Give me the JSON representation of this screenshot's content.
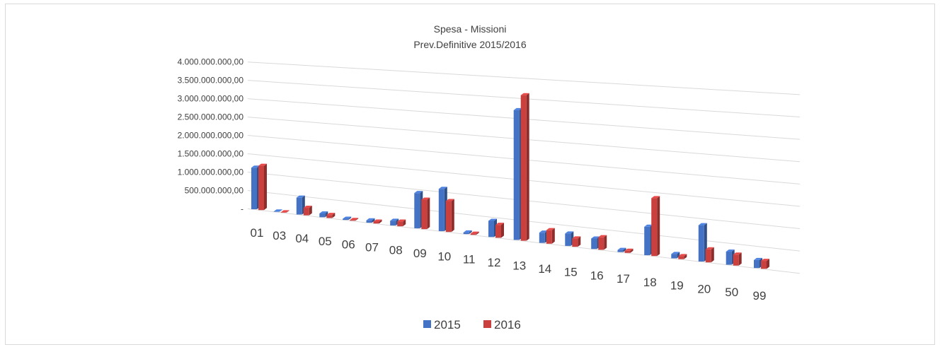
{
  "chart_data": {
    "type": "bar3d",
    "title": "Spesa - Missioni",
    "subtitle": "Prev.Definitive 2015/2016",
    "categories": [
      "01",
      "03",
      "04",
      "05",
      "06",
      "07",
      "08",
      "09",
      "10",
      "11",
      "12",
      "13",
      "14",
      "15",
      "16",
      "17",
      "18",
      "19",
      "20",
      "50",
      "99"
    ],
    "series": [
      {
        "name": "2015",
        "color": "#4472c4",
        "values": [
          1130000000,
          10000000,
          450000000,
          100000000,
          30000000,
          60000000,
          120000000,
          900000000,
          1070000000,
          40000000,
          400000000,
          3200000000,
          250000000,
          300000000,
          250000000,
          50000000,
          670000000,
          100000000,
          840000000,
          300000000,
          180000000
        ]
      },
      {
        "name": "2016",
        "color": "#c9403f",
        "values": [
          1200000000,
          10000000,
          200000000,
          80000000,
          20000000,
          50000000,
          120000000,
          750000000,
          780000000,
          30000000,
          320000000,
          3580000000,
          330000000,
          200000000,
          300000000,
          50000000,
          1360000000,
          70000000,
          300000000,
          250000000,
          180000000
        ]
      }
    ],
    "ylim": [
      0,
      4000000000
    ],
    "yticks": [
      {
        "value": 0,
        "label": "-"
      },
      {
        "value": 500000000,
        "label": "500.000.000,00"
      },
      {
        "value": 1000000000,
        "label": "1.000.000.000,00"
      },
      {
        "value": 1500000000,
        "label": "1.500.000.000,00"
      },
      {
        "value": 2000000000,
        "label": "2.000.000.000,00"
      },
      {
        "value": 2500000000,
        "label": "2.500.000.000,00"
      },
      {
        "value": 3000000000,
        "label": "3.000.000.000,00"
      },
      {
        "value": 3500000000,
        "label": "3.500.000.000,00"
      },
      {
        "value": 4000000000,
        "label": "4.000.000.000,00"
      }
    ],
    "grid": true,
    "legend": "bottom"
  }
}
